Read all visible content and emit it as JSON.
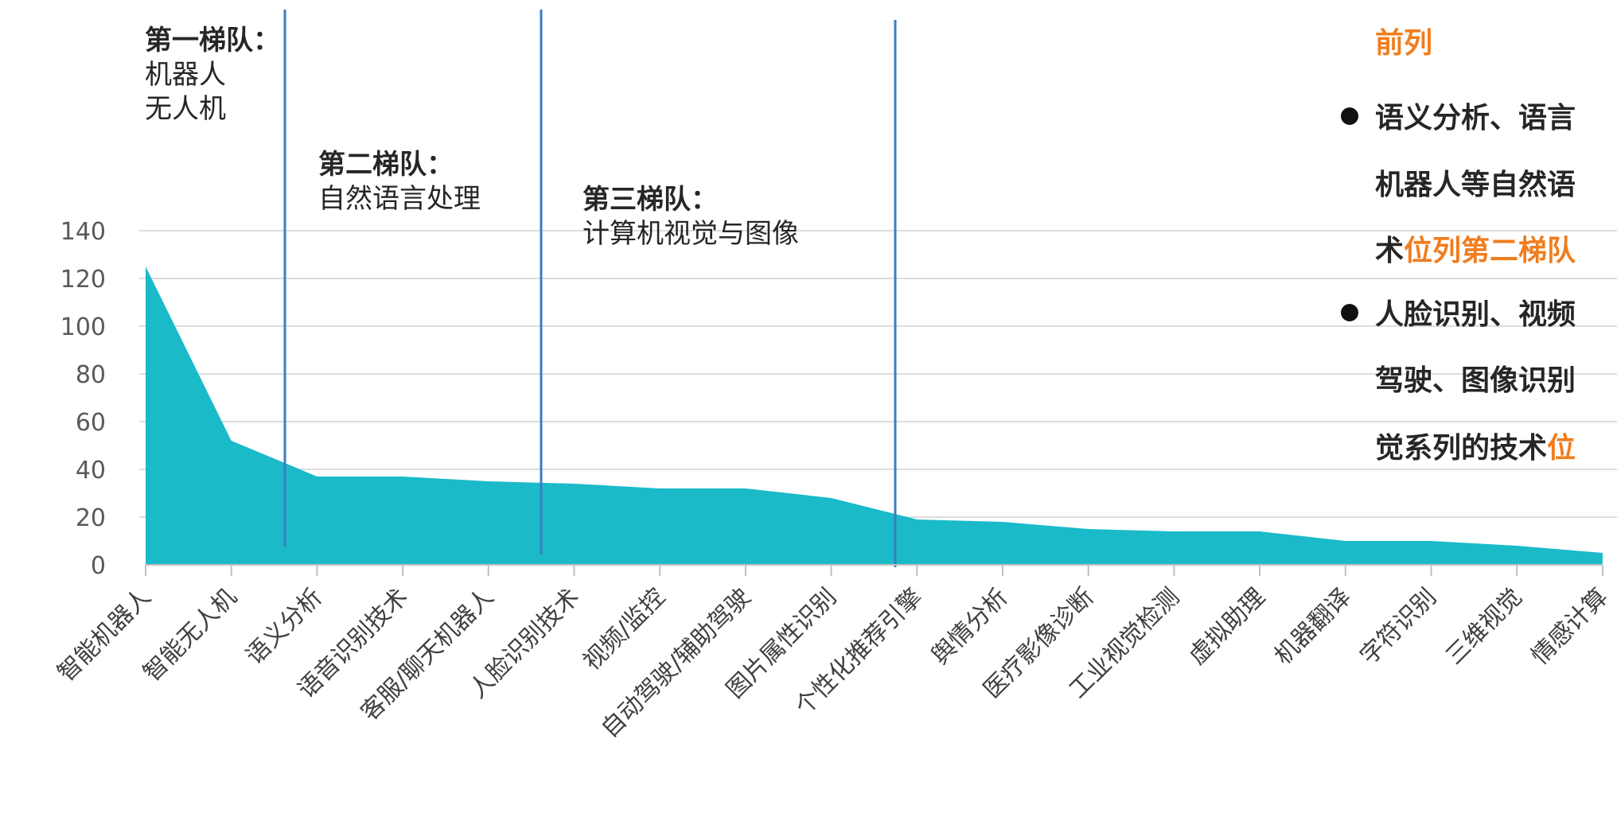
{
  "chart_data": {
    "type": "area",
    "categories": [
      "智能机器人",
      "智能无人机",
      "语义分析",
      "语音识别技术",
      "客服/聊天机器人",
      "人脸识别技术",
      "视频/监控",
      "自动驾驶/辅助驾驶",
      "图片属性识别",
      "个性化推荐引擎",
      "舆情分析",
      "医疗影像诊断",
      "工业视觉检测",
      "虚拟助理",
      "机器翻译",
      "字符识别",
      "三维视觉",
      "情感计算"
    ],
    "values": [
      125,
      52,
      37,
      37,
      35,
      34,
      32,
      32,
      28,
      19,
      18,
      15,
      14,
      14,
      10,
      10,
      8,
      5
    ],
    "ylim": [
      0,
      150
    ],
    "yticks": [
      0,
      20,
      40,
      60,
      80,
      100,
      120,
      140
    ],
    "fill_color": "#1ABAC9",
    "divider_color": "#3A7EC0",
    "grid": true,
    "tiers": [
      {
        "title": "第一梯队：",
        "items": [
          "机器人",
          "无人机"
        ]
      },
      {
        "title": "第二梯队：",
        "items": [
          "自然语言处理"
        ]
      },
      {
        "title": "第三梯队：",
        "items": [
          "计算机视觉与图像"
        ]
      }
    ]
  },
  "side_panel": {
    "heading": "前列",
    "bullets": [
      {
        "lines": [
          [
            {
              "text": "语义分析、语言"
            }
          ],
          [
            {
              "text": "机器人等自然语"
            }
          ],
          [
            {
              "text": "术"
            },
            {
              "text": "位列第二梯队",
              "accent": true
            }
          ]
        ]
      },
      {
        "lines": [
          [
            {
              "text": "人脸识别、视频"
            }
          ],
          [
            {
              "text": "驾驶、图像识别"
            }
          ],
          [
            {
              "text": "觉系列的技术"
            },
            {
              "text": "位",
              "accent": true
            }
          ]
        ]
      }
    ],
    "accent_color": "#F07D1E"
  }
}
